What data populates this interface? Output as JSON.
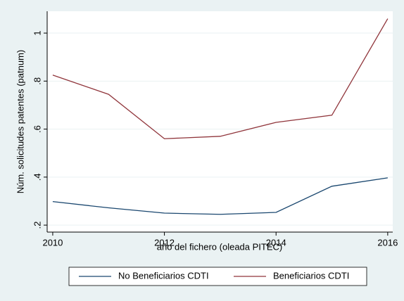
{
  "chart_data": {
    "type": "line",
    "x_label": "año del fichero (oleada PITEC)",
    "y_label": "Núm. solicitudes patentes (patnum)",
    "x": [
      2010,
      2011,
      2012,
      2013,
      2014,
      2015,
      2016
    ],
    "series": [
      {
        "name": "No Beneficiarios CDTI",
        "color": "#1a476f",
        "values": [
          0.298,
          0.272,
          0.25,
          0.245,
          0.253,
          0.362,
          0.397
        ]
      },
      {
        "name": "Beneficiarios CDTI",
        "color": "#90353b",
        "values": [
          0.825,
          0.745,
          0.56,
          0.57,
          0.628,
          0.658,
          1.06
        ]
      }
    ],
    "xlim": [
      2009.9,
      2016.09
    ],
    "ylim": [
      0.171,
      1.091
    ],
    "xticks": [
      2010,
      2012,
      2014,
      2016
    ],
    "yticks": [
      {
        "value": 0.2,
        "label": ".2"
      },
      {
        "value": 0.4,
        "label": ".4"
      },
      {
        "value": 0.6,
        "label": ".6"
      },
      {
        "value": 0.8,
        "label": ".8"
      },
      1
    ],
    "grid": true,
    "legend": "bottom"
  }
}
